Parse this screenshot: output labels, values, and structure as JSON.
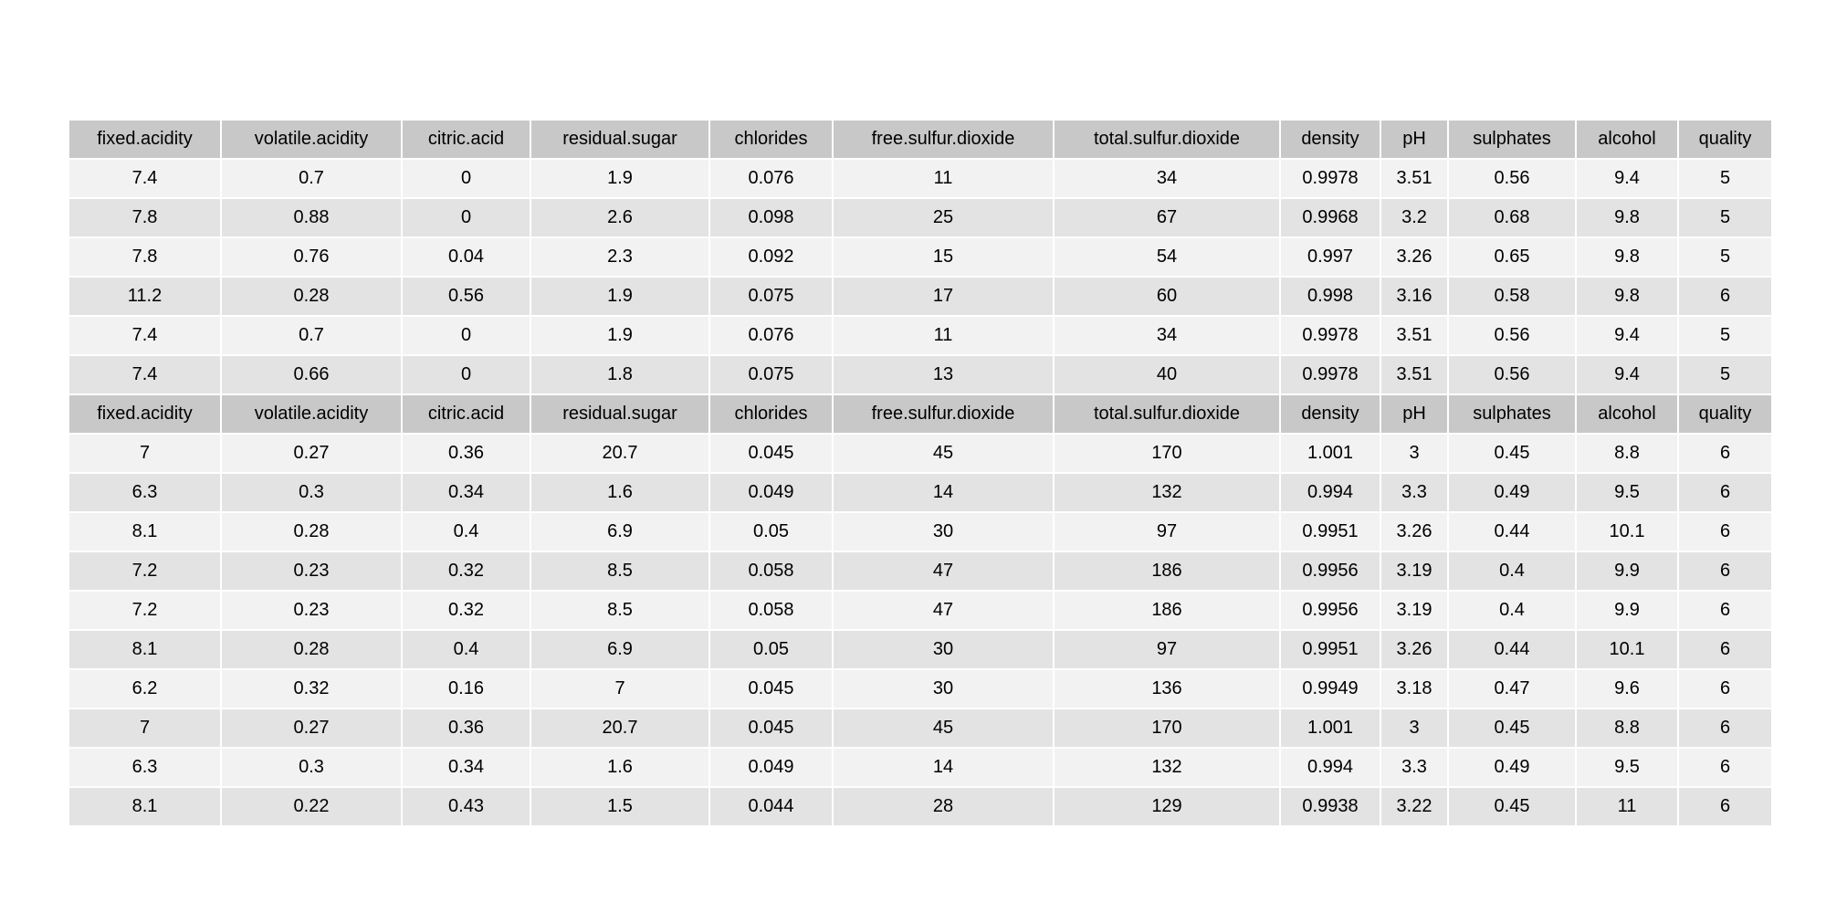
{
  "chart_data": {
    "type": "table",
    "columns": [
      "fixed.acidity",
      "volatile.acidity",
      "citric.acid",
      "residual.sugar",
      "chlorides",
      "free.sulfur.dioxide",
      "total.sulfur.dioxide",
      "density",
      "pH",
      "sulphates",
      "alcohol",
      "quality"
    ],
    "blocks": [
      {
        "header": [
          "fixed.acidity",
          "volatile.acidity",
          "citric.acid",
          "residual.sugar",
          "chlorides",
          "free.sulfur.dioxide",
          "total.sulfur.dioxide",
          "density",
          "pH",
          "sulphates",
          "alcohol",
          "quality"
        ],
        "rows": [
          [
            "7.4",
            "0.7",
            "0",
            "1.9",
            "0.076",
            "11",
            "34",
            "0.9978",
            "3.51",
            "0.56",
            "9.4",
            "5"
          ],
          [
            "7.8",
            "0.88",
            "0",
            "2.6",
            "0.098",
            "25",
            "67",
            "0.9968",
            "3.2",
            "0.68",
            "9.8",
            "5"
          ],
          [
            "7.8",
            "0.76",
            "0.04",
            "2.3",
            "0.092",
            "15",
            "54",
            "0.997",
            "3.26",
            "0.65",
            "9.8",
            "5"
          ],
          [
            "11.2",
            "0.28",
            "0.56",
            "1.9",
            "0.075",
            "17",
            "60",
            "0.998",
            "3.16",
            "0.58",
            "9.8",
            "6"
          ],
          [
            "7.4",
            "0.7",
            "0",
            "1.9",
            "0.076",
            "11",
            "34",
            "0.9978",
            "3.51",
            "0.56",
            "9.4",
            "5"
          ],
          [
            "7.4",
            "0.66",
            "0",
            "1.8",
            "0.075",
            "13",
            "40",
            "0.9978",
            "3.51",
            "0.56",
            "9.4",
            "5"
          ]
        ]
      },
      {
        "header": [
          "fixed.acidity",
          "volatile.acidity",
          "citric.acid",
          "residual.sugar",
          "chlorides",
          "free.sulfur.dioxide",
          "total.sulfur.dioxide",
          "density",
          "pH",
          "sulphates",
          "alcohol",
          "quality"
        ],
        "rows": [
          [
            "7",
            "0.27",
            "0.36",
            "20.7",
            "0.045",
            "45",
            "170",
            "1.001",
            "3",
            "0.45",
            "8.8",
            "6"
          ],
          [
            "6.3",
            "0.3",
            "0.34",
            "1.6",
            "0.049",
            "14",
            "132",
            "0.994",
            "3.3",
            "0.49",
            "9.5",
            "6"
          ],
          [
            "8.1",
            "0.28",
            "0.4",
            "6.9",
            "0.05",
            "30",
            "97",
            "0.9951",
            "3.26",
            "0.44",
            "10.1",
            "6"
          ],
          [
            "7.2",
            "0.23",
            "0.32",
            "8.5",
            "0.058",
            "47",
            "186",
            "0.9956",
            "3.19",
            "0.4",
            "9.9",
            "6"
          ],
          [
            "7.2",
            "0.23",
            "0.32",
            "8.5",
            "0.058",
            "47",
            "186",
            "0.9956",
            "3.19",
            "0.4",
            "9.9",
            "6"
          ],
          [
            "8.1",
            "0.28",
            "0.4",
            "6.9",
            "0.05",
            "30",
            "97",
            "0.9951",
            "3.26",
            "0.44",
            "10.1",
            "6"
          ],
          [
            "6.2",
            "0.32",
            "0.16",
            "7",
            "0.045",
            "30",
            "136",
            "0.9949",
            "3.18",
            "0.47",
            "9.6",
            "6"
          ],
          [
            "7",
            "0.27",
            "0.36",
            "20.7",
            "0.045",
            "45",
            "170",
            "1.001",
            "3",
            "0.45",
            "8.8",
            "6"
          ],
          [
            "6.3",
            "0.3",
            "0.34",
            "1.6",
            "0.049",
            "14",
            "132",
            "0.994",
            "3.3",
            "0.49",
            "9.5",
            "6"
          ],
          [
            "8.1",
            "0.22",
            "0.43",
            "1.5",
            "0.044",
            "28",
            "129",
            "0.9938",
            "3.22",
            "0.45",
            "11",
            "6"
          ]
        ]
      }
    ],
    "colors": {
      "header": "#c8c8c8",
      "row_light": "#f2f2f2",
      "row_dark": "#e3e3e3",
      "grid": "#ffffff",
      "text": "#000000"
    }
  }
}
